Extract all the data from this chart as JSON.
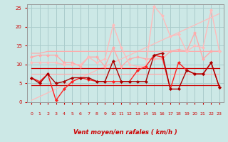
{
  "title": "",
  "xlabel": "Vent moyen/en rafales ( km/h )",
  "background_color": "#cce8e6",
  "grid_color": "#aacccc",
  "xlim": [
    -0.5,
    23.5
  ],
  "ylim": [
    0,
    26
  ],
  "yticks": [
    0,
    5,
    10,
    15,
    20,
    25
  ],
  "xticks": [
    0,
    1,
    2,
    3,
    4,
    5,
    6,
    7,
    8,
    9,
    10,
    11,
    12,
    13,
    14,
    15,
    16,
    17,
    18,
    19,
    20,
    21,
    22,
    23
  ],
  "series": [
    {
      "label": "diagonal_upper",
      "y": [
        0.5,
        1.5,
        2.5,
        3.5,
        4.5,
        5.5,
        6.5,
        7.5,
        8.5,
        9.5,
        10.5,
        11.5,
        12.5,
        13.5,
        14.5,
        15.5,
        16.5,
        17.5,
        18.5,
        19.5,
        20.5,
        21.5,
        22.5,
        23.5
      ],
      "color": "#ffbbbb",
      "linewidth": 0.9,
      "marker": null,
      "linestyle": "-"
    },
    {
      "label": "flat_upper_pink",
      "y": [
        13.0,
        13.0,
        13.5,
        13.5,
        13.5,
        13.5,
        13.5,
        13.5,
        13.5,
        13.5,
        13.5,
        13.5,
        13.5,
        13.5,
        13.5,
        13.5,
        13.5,
        13.5,
        13.5,
        13.5,
        13.5,
        13.5,
        13.5,
        13.5
      ],
      "color": "#ffaaaa",
      "linewidth": 0.9,
      "marker": null,
      "linestyle": "-"
    },
    {
      "label": "flat_mid_pink",
      "y": [
        7.5,
        7.5,
        7.5,
        7.5,
        7.5,
        7.5,
        7.5,
        7.5,
        7.5,
        7.5,
        7.5,
        7.5,
        7.5,
        7.5,
        7.5,
        7.5,
        7.5,
        7.5,
        7.5,
        7.5,
        7.5,
        7.5,
        7.5,
        7.5
      ],
      "color": "#ffaaaa",
      "linewidth": 0.9,
      "marker": null,
      "linestyle": "-"
    },
    {
      "label": "flat_lower_dark",
      "y": [
        4.5,
        4.5,
        4.5,
        4.5,
        4.5,
        4.5,
        4.5,
        4.5,
        4.5,
        4.5,
        4.5,
        4.5,
        4.5,
        4.5,
        4.5,
        4.5,
        4.5,
        4.5,
        4.5,
        4.5,
        4.5,
        4.5,
        4.5,
        4.5
      ],
      "color": "#cc0000",
      "linewidth": 0.9,
      "marker": null,
      "linestyle": "-"
    },
    {
      "label": "flat_upper_dark",
      "y": [
        9.0,
        9.0,
        9.0,
        9.0,
        9.0,
        9.0,
        9.0,
        9.0,
        9.0,
        9.0,
        9.0,
        9.0,
        9.0,
        9.0,
        9.0,
        9.0,
        9.0,
        9.0,
        9.0,
        9.0,
        9.0,
        9.0,
        9.0,
        9.0
      ],
      "color": "#cc0000",
      "linewidth": 0.9,
      "marker": null,
      "linestyle": "-"
    },
    {
      "label": "upper_wavy_pink",
      "y": [
        12.0,
        12.5,
        12.5,
        12.5,
        10.5,
        10.5,
        9.5,
        12.0,
        12.0,
        9.5,
        14.5,
        9.5,
        11.5,
        12.0,
        11.5,
        11.5,
        11.5,
        13.5,
        14.0,
        13.5,
        18.5,
        11.5,
        13.5,
        13.5
      ],
      "color": "#ffaaaa",
      "linewidth": 1.0,
      "marker": "D",
      "markersize": 2.0,
      "linestyle": "-"
    },
    {
      "label": "upper_volatile_light",
      "y": [
        10.5,
        10.5,
        10.5,
        10.5,
        10.0,
        10.0,
        10.0,
        12.0,
        10.5,
        11.5,
        20.5,
        14.5,
        10.0,
        9.5,
        9.5,
        25.5,
        23.0,
        17.5,
        18.0,
        13.5,
        15.0,
        14.5,
        24.5,
        13.5
      ],
      "color": "#ffbbbb",
      "linewidth": 1.0,
      "marker": "D",
      "markersize": 2.0,
      "linestyle": "-"
    },
    {
      "label": "mid_wavy_red",
      "y": [
        6.5,
        5.5,
        7.5,
        0.5,
        3.5,
        5.5,
        6.5,
        6.0,
        5.5,
        5.5,
        5.5,
        5.5,
        5.5,
        8.5,
        9.5,
        12.5,
        12.0,
        3.5,
        10.5,
        8.5,
        7.5,
        7.5,
        10.5,
        4.0
      ],
      "color": "#ff2222",
      "linewidth": 1.0,
      "marker": "D",
      "markersize": 2.0,
      "linestyle": "-"
    },
    {
      "label": "lower_dark_wavy",
      "y": [
        6.5,
        5.0,
        7.5,
        5.0,
        5.5,
        6.5,
        6.5,
        6.5,
        5.5,
        5.5,
        11.0,
        5.5,
        5.5,
        5.5,
        5.5,
        12.5,
        13.0,
        3.5,
        3.5,
        8.5,
        7.5,
        7.5,
        10.5,
        4.0
      ],
      "color": "#aa0000",
      "linewidth": 1.0,
      "marker": "D",
      "markersize": 2.0,
      "linestyle": "-"
    }
  ],
  "arrows": [
    "↗",
    "↑",
    "↑",
    "↓",
    "↑",
    "↘",
    "↘",
    "↓",
    "↙",
    "←",
    "←",
    "←",
    "↙",
    "←",
    "↗",
    "↙",
    "←",
    "↘",
    "↘",
    "↘",
    "↙",
    "↙",
    "↙",
    "↙"
  ],
  "arrow_color": "#cc0000",
  "xlabel_color": "#cc0000",
  "tick_color": "#cc0000"
}
